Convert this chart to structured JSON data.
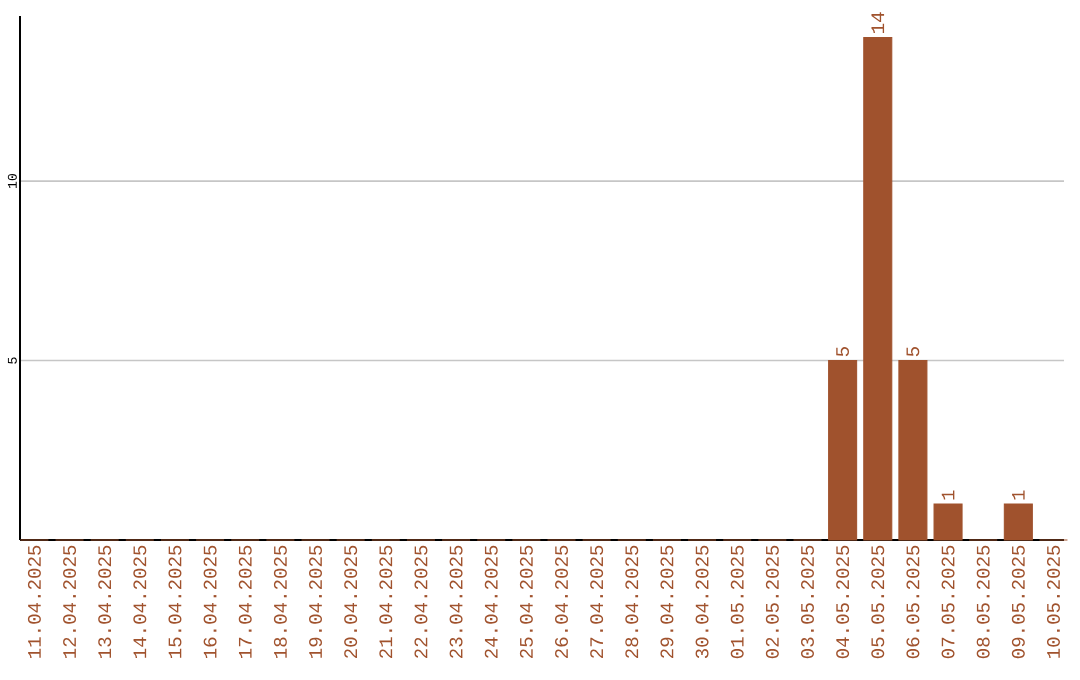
{
  "chart_data": {
    "type": "bar",
    "categories": [
      "11.04.2025",
      "12.04.2025",
      "13.04.2025",
      "14.04.2025",
      "15.04.2025",
      "16.04.2025",
      "17.04.2025",
      "18.04.2025",
      "19.04.2025",
      "20.04.2025",
      "21.04.2025",
      "22.04.2025",
      "23.04.2025",
      "24.04.2025",
      "25.04.2025",
      "26.04.2025",
      "27.04.2025",
      "28.04.2025",
      "29.04.2025",
      "30.04.2025",
      "01.05.2025",
      "02.05.2025",
      "03.05.2025",
      "04.05.2025",
      "05.05.2025",
      "06.05.2025",
      "07.05.2025",
      "08.05.2025",
      "09.05.2025",
      "10.05.2025"
    ],
    "values": [
      0,
      0,
      0,
      0,
      0,
      0,
      0,
      0,
      0,
      0,
      0,
      0,
      0,
      0,
      0,
      0,
      0,
      0,
      0,
      0,
      0,
      0,
      0,
      5,
      14,
      5,
      1,
      0,
      1,
      0
    ],
    "value_labels": [
      null,
      null,
      null,
      null,
      null,
      null,
      null,
      null,
      null,
      null,
      null,
      null,
      null,
      null,
      null,
      null,
      null,
      null,
      null,
      null,
      null,
      null,
      null,
      "5",
      "14",
      "5",
      "1",
      null,
      "1",
      null
    ],
    "color": "#a0522d",
    "ylim": [
      0,
      14.6
    ],
    "yticks": [
      5,
      10
    ],
    "grid": "y"
  }
}
